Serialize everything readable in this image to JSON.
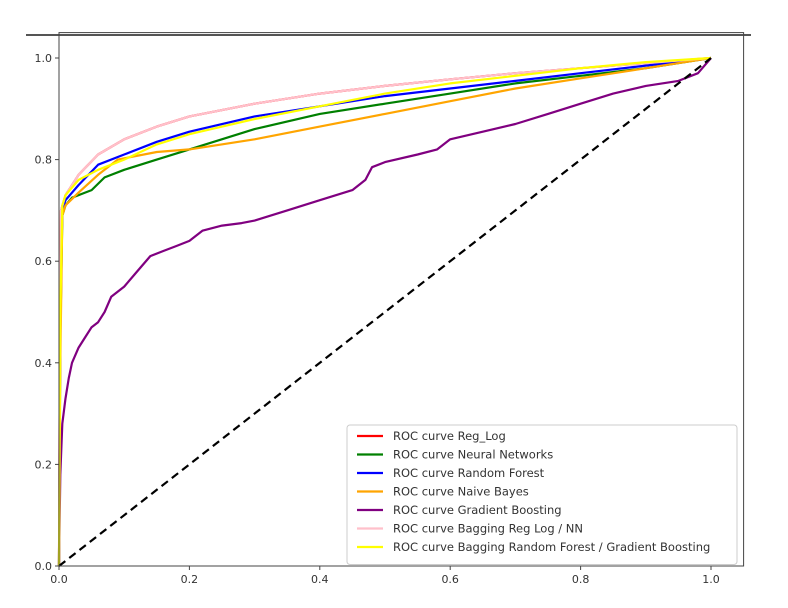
{
  "chart_data": {
    "type": "line",
    "title": "",
    "xlabel": "",
    "ylabel": "",
    "xlim": [
      0.0,
      1.05
    ],
    "ylim": [
      0.0,
      1.05
    ],
    "grid": false,
    "legend_position": "lower right",
    "x_ticks": [
      "0.0",
      "0.2",
      "0.4",
      "0.6",
      "0.8",
      "1.0"
    ],
    "y_ticks": [
      "0.0",
      "0.2",
      "0.4",
      "0.6",
      "0.8",
      "1.0"
    ],
    "series": [
      {
        "name": "ROC curve Reg_Log",
        "color": "#ff0000",
        "x": [
          0,
          0.001,
          0.003,
          0.01,
          0.03,
          0.06,
          0.1,
          0.15,
          0.2,
          0.3,
          0.4,
          0.5,
          0.6,
          0.7,
          0.8,
          0.9,
          1.0
        ],
        "y": [
          0,
          0.35,
          0.7,
          0.73,
          0.77,
          0.81,
          0.84,
          0.865,
          0.885,
          0.91,
          0.93,
          0.945,
          0.958,
          0.97,
          0.98,
          0.99,
          1.0
        ]
      },
      {
        "name": "ROC curve Neural Networks",
        "color": "#008000",
        "x": [
          0,
          0.002,
          0.005,
          0.01,
          0.02,
          0.04,
          0.05,
          0.07,
          0.1,
          0.15,
          0.2,
          0.3,
          0.4,
          0.5,
          0.6,
          0.7,
          0.8,
          0.9,
          1.0
        ],
        "y": [
          0,
          0.45,
          0.69,
          0.71,
          0.725,
          0.735,
          0.74,
          0.765,
          0.78,
          0.8,
          0.82,
          0.86,
          0.89,
          0.91,
          0.93,
          0.95,
          0.965,
          0.98,
          1.0
        ]
      },
      {
        "name": "ROC curve Random Forest",
        "color": "#0000ff",
        "x": [
          0,
          0.002,
          0.005,
          0.01,
          0.03,
          0.06,
          0.1,
          0.15,
          0.2,
          0.3,
          0.4,
          0.5,
          0.6,
          0.7,
          0.8,
          0.9,
          1.0
        ],
        "y": [
          0,
          0.5,
          0.7,
          0.72,
          0.75,
          0.79,
          0.81,
          0.835,
          0.855,
          0.885,
          0.905,
          0.925,
          0.94,
          0.955,
          0.97,
          0.985,
          1.0
        ]
      },
      {
        "name": "ROC curve Naive Bayes",
        "color": "#ffa500",
        "x": [
          0,
          0.002,
          0.005,
          0.01,
          0.03,
          0.06,
          0.09,
          0.15,
          0.2,
          0.3,
          0.4,
          0.5,
          0.6,
          0.7,
          0.8,
          0.9,
          1.0
        ],
        "y": [
          0,
          0.4,
          0.69,
          0.71,
          0.735,
          0.77,
          0.8,
          0.815,
          0.82,
          0.84,
          0.865,
          0.89,
          0.915,
          0.94,
          0.96,
          0.98,
          1.0
        ]
      },
      {
        "name": "ROC curve Gradient Boosting",
        "color": "#800080",
        "x": [
          0,
          0.002,
          0.005,
          0.01,
          0.015,
          0.02,
          0.03,
          0.04,
          0.05,
          0.06,
          0.07,
          0.08,
          0.1,
          0.12,
          0.14,
          0.16,
          0.18,
          0.2,
          0.22,
          0.25,
          0.28,
          0.3,
          0.35,
          0.4,
          0.45,
          0.47,
          0.48,
          0.5,
          0.55,
          0.58,
          0.6,
          0.65,
          0.7,
          0.75,
          0.8,
          0.85,
          0.9,
          0.95,
          0.98,
          1.0
        ],
        "y": [
          0,
          0.18,
          0.28,
          0.33,
          0.37,
          0.4,
          0.43,
          0.45,
          0.47,
          0.48,
          0.5,
          0.53,
          0.55,
          0.58,
          0.61,
          0.62,
          0.63,
          0.64,
          0.66,
          0.67,
          0.675,
          0.68,
          0.7,
          0.72,
          0.74,
          0.76,
          0.785,
          0.795,
          0.81,
          0.82,
          0.84,
          0.855,
          0.87,
          0.89,
          0.91,
          0.93,
          0.945,
          0.955,
          0.97,
          1.0
        ]
      },
      {
        "name": "ROC curve Bagging Reg Log / NN",
        "color": "#ffc0cb",
        "x": [
          0,
          0.001,
          0.003,
          0.01,
          0.03,
          0.06,
          0.1,
          0.15,
          0.2,
          0.3,
          0.4,
          0.5,
          0.6,
          0.7,
          0.8,
          0.9,
          1.0
        ],
        "y": [
          0,
          0.35,
          0.7,
          0.73,
          0.77,
          0.81,
          0.84,
          0.865,
          0.885,
          0.91,
          0.93,
          0.945,
          0.958,
          0.97,
          0.98,
          0.99,
          1.0
        ]
      },
      {
        "name": "ROC curve Bagging Random Forest / Gradient Boosting",
        "color": "#ffff00",
        "x": [
          0,
          0.002,
          0.005,
          0.01,
          0.03,
          0.06,
          0.1,
          0.15,
          0.2,
          0.3,
          0.4,
          0.5,
          0.6,
          0.7,
          0.8,
          0.9,
          1.0
        ],
        "y": [
          0,
          0.5,
          0.71,
          0.73,
          0.76,
          0.78,
          0.8,
          0.83,
          0.85,
          0.88,
          0.905,
          0.93,
          0.95,
          0.965,
          0.98,
          0.992,
          1.0
        ]
      }
    ],
    "reference_line": {
      "name": "chance",
      "color": "#000000",
      "style": "dashed",
      "x": [
        0,
        1
      ],
      "y": [
        0,
        1
      ]
    }
  }
}
